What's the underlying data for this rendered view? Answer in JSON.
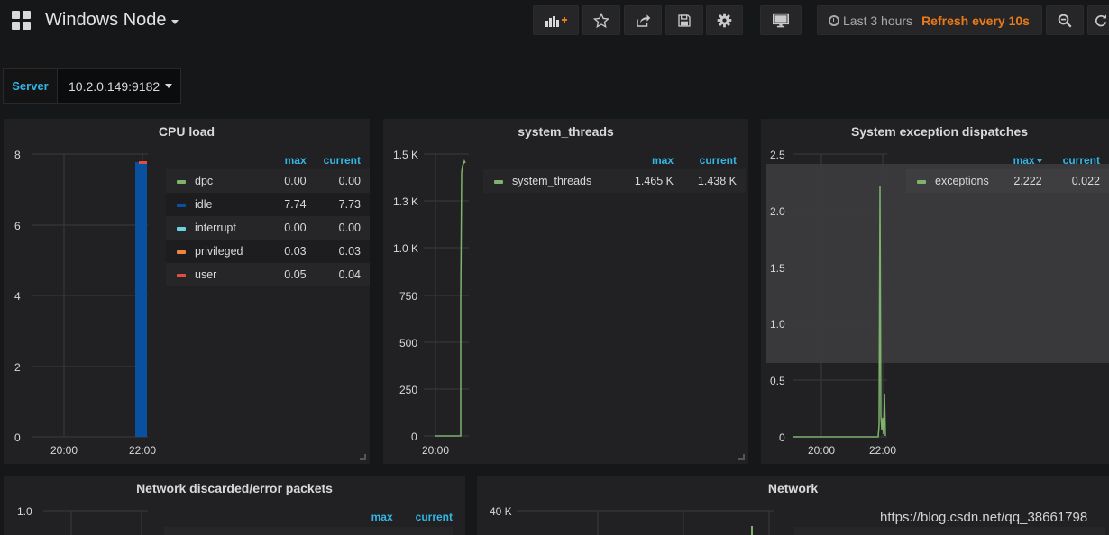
{
  "navbar": {
    "title": "Windows Node",
    "time_range": "Last 3 hours",
    "refresh": "Refresh every 10s"
  },
  "variables": {
    "server_label": "Server",
    "server_value": "10.2.0.149:9182"
  },
  "panels": {
    "cpu": {
      "title": "CPU load",
      "legend_headers": [
        "max",
        "current"
      ],
      "legend": [
        {
          "name": "dpc",
          "color": "#7eb26d",
          "max": "0.00",
          "current": "0.00"
        },
        {
          "name": "idle",
          "color": "#0a50a1",
          "max": "7.74",
          "current": "7.73"
        },
        {
          "name": "interrupt",
          "color": "#6ed0e0",
          "max": "0.00",
          "current": "0.00"
        },
        {
          "name": "privileged",
          "color": "#ef843c",
          "max": "0.03",
          "current": "0.03"
        },
        {
          "name": "user",
          "color": "#e24d42",
          "max": "0.05",
          "current": "0.04"
        }
      ],
      "y_ticks": [
        "8",
        "6",
        "4",
        "2",
        "0"
      ],
      "x_ticks": [
        "20:00",
        "22:00"
      ]
    },
    "threads": {
      "title": "system_threads",
      "legend_headers": [
        "max",
        "current"
      ],
      "legend": [
        {
          "name": "system_threads",
          "color": "#7eb26d",
          "max": "1.465 K",
          "current": "1.438 K"
        }
      ],
      "y_ticks": [
        "1.5 K",
        "1.3 K",
        "1.0 K",
        "750",
        "500",
        "250",
        "0"
      ],
      "x_ticks": [
        "20:00"
      ]
    },
    "exceptions": {
      "title": "System exception dispatches",
      "legend_headers": [
        "max",
        "current"
      ],
      "legend": [
        {
          "name": "exceptions",
          "color": "#7eb26d",
          "max": "2.222",
          "current": "0.022"
        }
      ],
      "y_ticks": [
        "2.5",
        "2.0",
        "1.5",
        "1.0",
        "0.5",
        "0"
      ],
      "x_ticks": [
        "20:00",
        "22:00"
      ]
    },
    "netdisc": {
      "title": "Network discarded/error packets",
      "legend_headers": [
        "max",
        "current"
      ],
      "y_ticks": [
        "1.0"
      ]
    },
    "network": {
      "title": "Network",
      "y_ticks": [
        "40 K"
      ]
    }
  },
  "watermark": "https://blog.csdn.net/qq_38661798"
}
